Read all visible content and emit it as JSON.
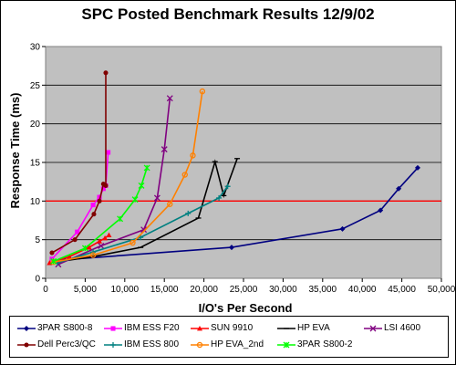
{
  "chart_data": {
    "type": "line",
    "title": "SPC Posted Benchmark Results  12/9/02",
    "xlabel": "I/O's Per Second",
    "ylabel": "Response Time (ms)",
    "xlim": [
      0,
      50000
    ],
    "ylim": [
      0,
      30
    ],
    "x_ticks": [
      "0",
      "5,000",
      "10,000",
      "15,000",
      "20,000",
      "25,000",
      "30,000",
      "35,000",
      "40,000",
      "45,000",
      "50,000"
    ],
    "y_ticks": [
      "0",
      "5",
      "10",
      "15",
      "20",
      "25",
      "30"
    ],
    "reference_line": {
      "y": 10,
      "color": "#ff0000"
    },
    "grid": "horizontal",
    "legend_position": "bottom",
    "series": [
      {
        "name": "3PAR S800-8",
        "color": "#000080",
        "marker": "diamond",
        "x": [
          2300,
          23500,
          37500,
          42300,
          44600,
          47000
        ],
        "y": [
          2.4,
          4.0,
          6.4,
          8.8,
          11.6,
          14.3
        ]
      },
      {
        "name": "IBM ESS F20",
        "color": "#ff00ff",
        "marker": "square",
        "x": [
          800,
          4000,
          6000,
          6800,
          7300,
          7600,
          7900
        ],
        "y": [
          2.5,
          6.0,
          9.5,
          10.5,
          11.6,
          12.0,
          16.3
        ]
      },
      {
        "name": "SUN 9910",
        "color": "#ff0000",
        "marker": "triangle",
        "x": [
          500,
          3000,
          5500,
          6800,
          7500,
          8000
        ],
        "y": [
          2.0,
          2.8,
          4.0,
          4.8,
          5.2,
          5.6
        ]
      },
      {
        "name": "HP EVA",
        "color": "#000000",
        "marker": "dash",
        "x": [
          1200,
          6000,
          12000,
          19300,
          21400,
          22500,
          24200
        ],
        "y": [
          2.1,
          2.8,
          4.0,
          7.8,
          15.1,
          10.7,
          15.5
        ]
      },
      {
        "name": "LSI 4600",
        "color": "#800080",
        "marker": "x",
        "x": [
          1600,
          7000,
          12400,
          14100,
          15000,
          15700
        ],
        "y": [
          1.8,
          4.2,
          6.3,
          10.4,
          16.7,
          23.3
        ]
      },
      {
        "name": "Dell Perc3/QC",
        "color": "#800000",
        "marker": "circle",
        "x": [
          800,
          3700,
          6100,
          6800,
          7300,
          7600,
          7600
        ],
        "y": [
          3.3,
          5.0,
          8.3,
          10.0,
          12.2,
          12.0,
          26.6
        ]
      },
      {
        "name": "IBM ESS 800",
        "color": "#008080",
        "marker": "plus",
        "x": [
          1500,
          6000,
          12000,
          18000,
          21900,
          23000
        ],
        "y": [
          2.0,
          3.4,
          5.3,
          8.4,
          10.4,
          11.9
        ]
      },
      {
        "name": "HP EVA_2nd",
        "color": "#ff8000",
        "marker": "circle-open",
        "x": [
          1000,
          6000,
          11000,
          15700,
          17600,
          18600,
          19800
        ],
        "y": [
          2.1,
          3.0,
          4.6,
          9.6,
          13.4,
          15.9,
          24.2
        ]
      },
      {
        "name": "3PAR S800-2",
        "color": "#00ff00",
        "marker": "star",
        "x": [
          1000,
          5000,
          9400,
          11300,
          12100,
          12800
        ],
        "y": [
          2.2,
          3.9,
          7.7,
          10.2,
          12.0,
          14.3
        ]
      }
    ]
  }
}
